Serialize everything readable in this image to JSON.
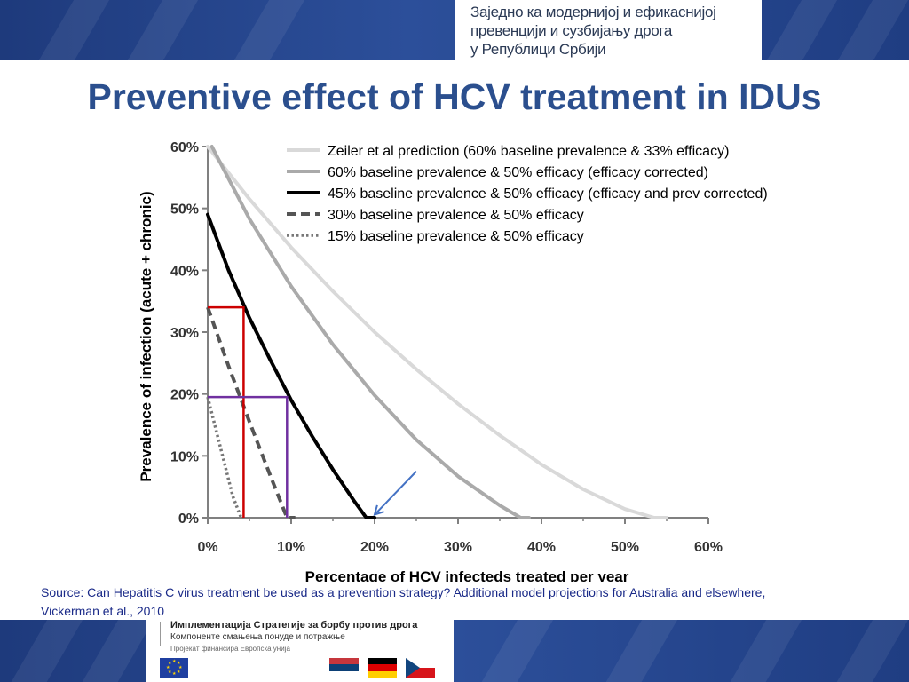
{
  "header": {
    "lines": [
      "Заједно ка модернијој и ефикаснијој",
      "превенцији и сузбијању дрога",
      "у Републици Србији"
    ]
  },
  "slide": {
    "title": "Preventive effect of HCV treatment in IDUs",
    "source_line1": "Source: Can Hepatitis C virus treatment be used as a prevention strategy? Additional model projections for Australia and elsewhere,",
    "source_line2": "Vickerman et al., 2010"
  },
  "footer": {
    "project_title": "Имплементација Стратегије за борбу против дрога",
    "project_subtitle": "Компоненте смањења понуде и потражње",
    "funding": "Пројекат финансира Европска унија",
    "icons": [
      "eu-flag-icon",
      "serbia-flag-icon",
      "germany-flag-icon",
      "czech-flag-icon"
    ]
  },
  "colors": {
    "banner": "#2c4f9a",
    "title": "#2b4f8e",
    "source": "#1a2a88",
    "annotation_red": "#cc0000",
    "annotation_purple": "#7030a0",
    "arrow": "#4472c4"
  },
  "chart_data": {
    "type": "line",
    "xlabel": "Percentage of HCV infecteds treated per year",
    "ylabel": "Prevalence of infection (acute + chronic)",
    "xlim": [
      0,
      60
    ],
    "ylim": [
      0,
      60
    ],
    "x_ticks": [
      "0%",
      "10%",
      "20%",
      "30%",
      "40%",
      "50%",
      "60%"
    ],
    "y_ticks": [
      "0%",
      "10%",
      "20%",
      "30%",
      "40%",
      "50%",
      "60%"
    ],
    "legend_position": "top-right",
    "series": [
      {
        "name": "Zeiler et al prediction (60% baseline prevalence & 33% efficacy)",
        "color": "#d9d9d9",
        "style": "solid",
        "x": [
          0,
          5,
          10,
          15,
          20,
          25,
          30,
          35,
          40,
          45,
          50,
          53.5,
          55
        ],
        "y": [
          60,
          51.5,
          43.7,
          36.6,
          30,
          24,
          18.4,
          13.3,
          8.6,
          4.6,
          1.4,
          0,
          0
        ]
      },
      {
        "name": "60% baseline prevalence & 50% efficacy (efficacy corrected)",
        "color": "#aaaaaa",
        "style": "solid",
        "x": [
          0.5,
          5,
          10,
          15,
          20,
          25,
          30,
          35,
          37.5,
          38.5
        ],
        "y": [
          60,
          48.3,
          37.4,
          28,
          19.8,
          12.6,
          6.7,
          2,
          0,
          0
        ]
      },
      {
        "name": "45% baseline prevalence & 50% efficacy (efficacy and prev corrected)",
        "color": "#000000",
        "style": "solid",
        "x": [
          0,
          2.5,
          5,
          7.5,
          10,
          12.5,
          15,
          17.5,
          19,
          20
        ],
        "y": [
          49,
          40,
          32.3,
          25.5,
          19,
          13.2,
          7.8,
          2.8,
          0,
          0
        ]
      },
      {
        "name": "30% baseline prevalence & 50% efficacy",
        "color": "#555555",
        "style": "dashed",
        "x": [
          0,
          2.5,
          5,
          7.5,
          9.5,
          10.5
        ],
        "y": [
          34,
          24.5,
          15.5,
          6.8,
          0,
          0
        ]
      },
      {
        "name": "15% baseline prevalence & 50% efficacy",
        "color": "#777777",
        "style": "dotted",
        "x": [
          0,
          1.5,
          3,
          4,
          4.3
        ],
        "y": [
          19.5,
          11.5,
          3.5,
          0,
          0
        ]
      }
    ],
    "annotations": [
      {
        "type": "bracket",
        "color": "#cc0000",
        "x": 4.3,
        "y": 34
      },
      {
        "type": "bracket",
        "color": "#7030a0",
        "x": 9.5,
        "y": 19.5
      },
      {
        "type": "arrow",
        "color": "#4472c4",
        "from": [
          25,
          7.5
        ],
        "to": [
          20,
          0.5
        ]
      }
    ]
  }
}
